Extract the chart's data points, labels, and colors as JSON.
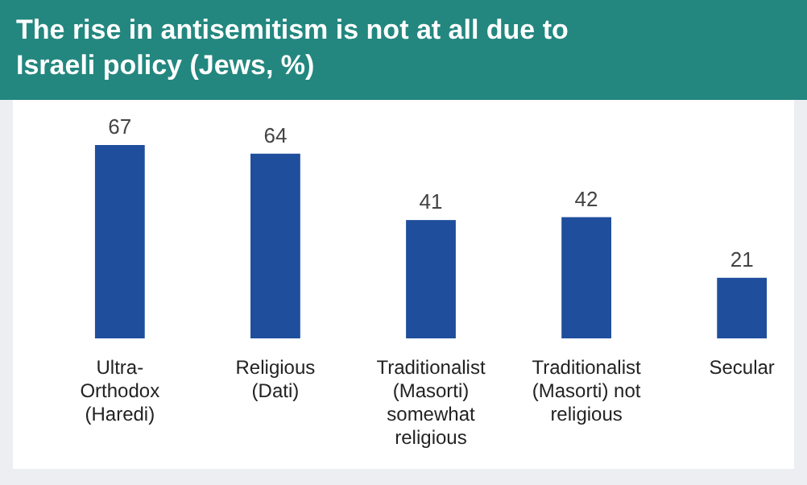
{
  "chart_data": {
    "type": "bar",
    "title": "The rise in antisemitism is not at all due to\nIsraeli policy (Jews, %)",
    "categories": [
      "Ultra-\nOrthodox\n(Haredi)",
      "Religious\n(Dati)",
      "Traditionalist\n(Masorti)\nsomewhat\nreligious",
      "Traditionalist\n(Masorti) not\nreligious",
      "Secular"
    ],
    "values": [
      67,
      64,
      41,
      42,
      21
    ],
    "color": "#1f4e9c",
    "data_labels": true
  }
}
